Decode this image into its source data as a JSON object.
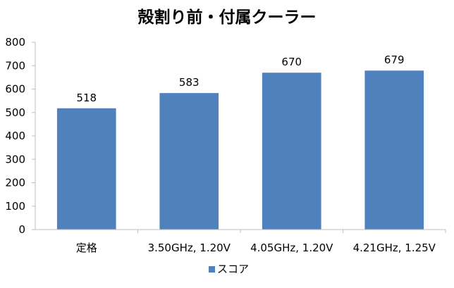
{
  "chart_data": {
    "type": "bar",
    "title": "殻割り前・付属クーラー",
    "categories": [
      "定格",
      "3.50GHz, 1.20V",
      "4.05GHz, 1.20V",
      "4.21GHz, 1.25V"
    ],
    "series": [
      {
        "name": "スコア",
        "values": [
          518,
          583,
          670,
          679
        ],
        "color": "#4F81BD"
      }
    ],
    "ylim": [
      0,
      800
    ],
    "yticks": [
      0,
      100,
      200,
      300,
      400,
      500,
      600,
      700,
      800
    ],
    "xlabel": "",
    "ylabel": "",
    "grid": false,
    "legend": "bottom",
    "data_labels": true
  },
  "colors": {
    "bar": "#4F81BD",
    "axis": "#BFBFBF"
  }
}
